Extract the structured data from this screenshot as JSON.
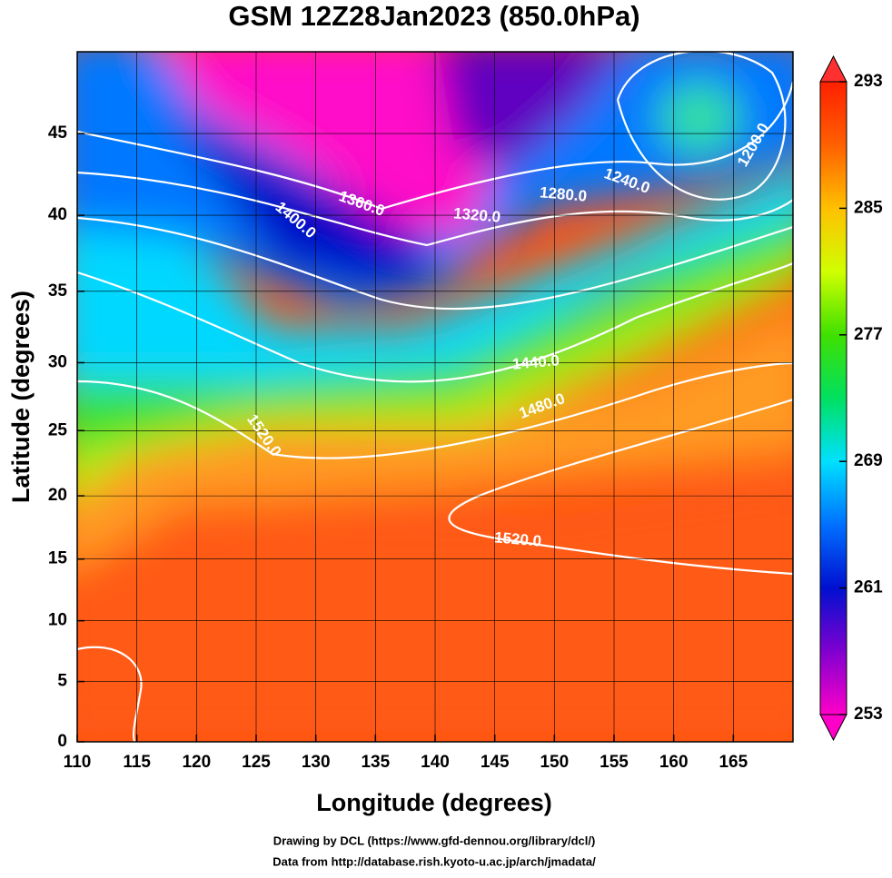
{
  "chart_data": {
    "type": "map",
    "title": "GSM 12Z28Jan2023 (850.0hPa)",
    "x_label": "Longitude (degrees)",
    "y_label": "Latitude  (degrees)",
    "projection": "mercator",
    "xlim": [
      110,
      170
    ],
    "ylim": [
      0,
      49.6
    ],
    "xticks": [
      110,
      115,
      120,
      125,
      130,
      135,
      140,
      145,
      150,
      155,
      160,
      165
    ],
    "yticks": [
      0,
      5,
      10,
      15,
      20,
      25,
      30,
      35,
      40,
      45
    ],
    "grid": true,
    "colorbar": {
      "clim": [
        253,
        293
      ],
      "ticks": [
        253,
        261,
        269,
        277,
        285,
        293
      ],
      "colors": [
        "#ff00c8",
        "#8000d0",
        "#0010d0",
        "#0070ff",
        "#00e0ff",
        "#00e060",
        "#40e000",
        "#d0ff00",
        "#ffc000",
        "#ff6000",
        "#ff2000"
      ]
    },
    "contour_labels": [
      {
        "value": 1200,
        "label": "1200.0"
      },
      {
        "value": 1240,
        "label": "1240.0"
      },
      {
        "value": 1280,
        "label": "1280.0"
      },
      {
        "value": 1320,
        "label": "1320.0"
      },
      {
        "value": 1360,
        "label": "1360.0"
      },
      {
        "value": 1400,
        "label": "1400.0"
      },
      {
        "value": 1440,
        "label": "1440.0"
      },
      {
        "value": 1480,
        "label": "1480.0"
      },
      {
        "value": 1520,
        "label": "1520.0"
      },
      {
        "value": 1520,
        "label": "1520.0"
      }
    ],
    "credits": [
      "Drawing by DCL (https://www.gfd-dennou.org/library/dcl/)",
      "Data from http://database.rish.kyoto-u.ac.jp/arch/jmadata/"
    ]
  }
}
